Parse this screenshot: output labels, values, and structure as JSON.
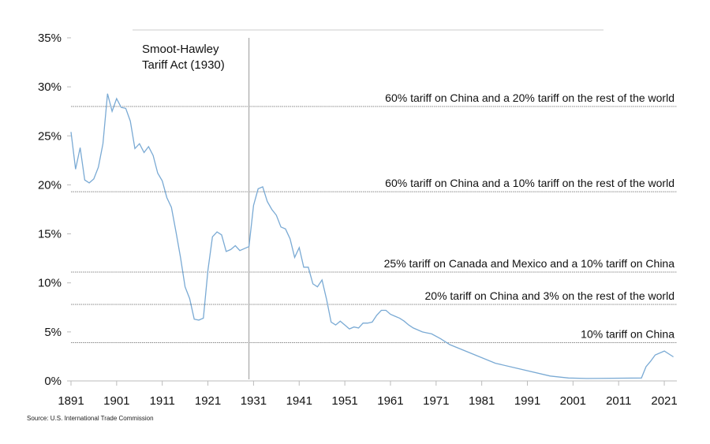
{
  "chart_data": {
    "type": "line",
    "title": "",
    "xlabel": "",
    "ylabel": "",
    "xlim": [
      1891,
      2024
    ],
    "ylim": [
      0,
      35
    ],
    "x_ticks": [
      "1891",
      "1901",
      "1911",
      "1921",
      "1931",
      "1941",
      "1951",
      "1961",
      "1971",
      "1981",
      "1991",
      "2001",
      "2011",
      "2021"
    ],
    "y_ticks": [
      "0%",
      "5%",
      "10%",
      "15%",
      "20%",
      "25%",
      "30%",
      "35%"
    ],
    "grid": false,
    "line_color": "#7aaad4",
    "series": [
      {
        "x": [
          1891,
          1892,
          1893,
          1894,
          1895,
          1896,
          1897,
          1898,
          1899,
          1900,
          1901,
          1902,
          1903,
          1904,
          1905,
          1906,
          1907,
          1908,
          1909,
          1910,
          1911,
          1912,
          1913,
          1914,
          1915,
          1916,
          1917,
          1918,
          1919,
          1920,
          1921,
          1922,
          1923,
          1924,
          1925,
          1926,
          1927,
          1928,
          1929,
          1930,
          1931,
          1932,
          1933,
          1934,
          1935,
          1936,
          1937,
          1938,
          1939,
          1940,
          1941,
          1942,
          1943,
          1944,
          1945,
          1946,
          1947,
          1948,
          1949,
          1950,
          1951,
          1952,
          1953,
          1954,
          1955,
          1956,
          1957,
          1958,
          1959,
          1960,
          1961,
          1962,
          1963,
          1964,
          1965,
          1966,
          1967,
          1968,
          1969,
          1970,
          1972,
          1974,
          1984,
          1996,
          2000,
          2004,
          2016,
          2017,
          2018,
          2019,
          2021,
          2023
        ],
        "values": [
          25.4,
          21.6,
          23.8,
          20.5,
          20.2,
          20.6,
          21.8,
          24.2,
          29.3,
          27.5,
          28.8,
          27.9,
          27.8,
          26.5,
          23.7,
          24.2,
          23.3,
          23.9,
          23.0,
          21.2,
          20.4,
          18.7,
          17.7,
          15.2,
          12.6,
          9.6,
          8.4,
          6.3,
          6.2,
          6.4,
          11.3,
          14.7,
          15.2,
          14.9,
          13.2,
          13.4,
          13.8,
          13.3,
          13.5,
          13.7,
          17.9,
          19.6,
          19.8,
          18.3,
          17.5,
          16.9,
          15.7,
          15.5,
          14.5,
          12.6,
          13.6,
          11.6,
          11.6,
          9.9,
          9.6,
          10.3,
          8.3,
          6.0,
          5.7,
          6.1,
          5.7,
          5.3,
          5.5,
          5.4,
          5.9,
          5.9,
          6.0,
          6.7,
          7.2,
          7.2,
          6.8,
          6.6,
          6.4,
          6.1,
          5.7,
          5.4,
          5.2,
          5.0,
          4.9,
          4.8,
          4.3,
          3.7,
          1.8,
          0.5,
          0.3,
          0.25,
          0.3,
          1.45,
          2.0,
          2.65,
          3.05,
          2.45
        ]
      }
    ],
    "vertical_marker": {
      "x": 1930,
      "label_lines": [
        "Smoot-Hawley",
        "Tariff Act (1930)"
      ]
    },
    "reference_lines": [
      {
        "value": 28.0,
        "label": "60% tariff on China and a 20% tariff on the rest of the world"
      },
      {
        "value": 19.3,
        "label": "60% tariff on China and a 10% tariff on the rest of the world"
      },
      {
        "value": 11.1,
        "label": "25% tariff on Canada and Mexico and a 10% tariff on China"
      },
      {
        "value": 7.8,
        "label": "20% tariff on China and 3% on the rest of the world"
      },
      {
        "value": 3.9,
        "label": "10% tariff on China"
      }
    ]
  },
  "source": "Source: U.S. International Trade Commission"
}
